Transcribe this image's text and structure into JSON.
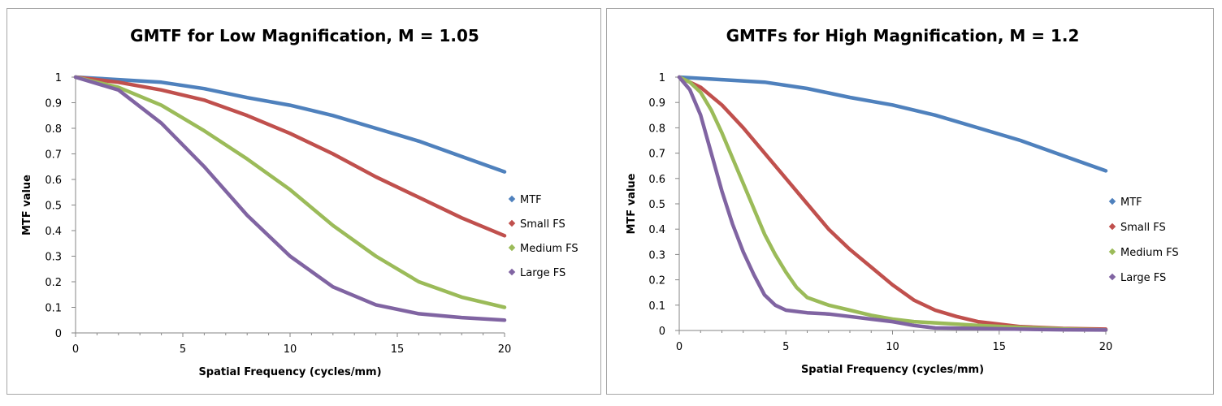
{
  "chart_data": [
    {
      "type": "line",
      "title": "GMTF for Low Magnification, M = 1.05",
      "xlabel": "Spatial Frequency (cycles/mm)",
      "ylabel": "MTF value",
      "xlim": [
        0,
        20
      ],
      "ylim": [
        0,
        1
      ],
      "x_ticks": [
        "0",
        "5",
        "10",
        "15",
        "20"
      ],
      "y_ticks": [
        "0",
        "0.1",
        "0.2",
        "0.3",
        "0.4",
        "0.5",
        "0.6",
        "0.7",
        "0.8",
        "0.9",
        "1"
      ],
      "grid": false,
      "legend_position": "right",
      "series": [
        {
          "name": "MTF",
          "color": "#4f81bd",
          "x": [
            0,
            2,
            4,
            6,
            8,
            10,
            12,
            14,
            16,
            18,
            20
          ],
          "values": [
            1,
            0.99,
            0.98,
            0.955,
            0.92,
            0.89,
            0.85,
            0.8,
            0.75,
            0.69,
            0.63
          ]
        },
        {
          "name": "Small FS",
          "color": "#c0504d",
          "x": [
            0,
            2,
            4,
            6,
            8,
            10,
            12,
            14,
            16,
            18,
            20
          ],
          "values": [
            1,
            0.98,
            0.95,
            0.91,
            0.85,
            0.78,
            0.7,
            0.61,
            0.53,
            0.45,
            0.38
          ]
        },
        {
          "name": "Medium FS",
          "color": "#9bbb59",
          "x": [
            0,
            2,
            4,
            6,
            8,
            10,
            12,
            14,
            16,
            18,
            20
          ],
          "values": [
            1,
            0.96,
            0.89,
            0.79,
            0.68,
            0.56,
            0.42,
            0.3,
            0.2,
            0.14,
            0.1
          ]
        },
        {
          "name": "Large FS",
          "color": "#8064a2",
          "x": [
            0,
            2,
            4,
            6,
            8,
            10,
            12,
            14,
            16,
            18,
            20
          ],
          "values": [
            1,
            0.95,
            0.82,
            0.65,
            0.46,
            0.3,
            0.18,
            0.11,
            0.075,
            0.06,
            0.05
          ]
        }
      ]
    },
    {
      "type": "line",
      "title": "GMTFs for High Magnification, M = 1.2",
      "xlabel": "Spatial Frequency (cycles/mm)",
      "ylabel": "MTF value",
      "xlim": [
        0,
        20
      ],
      "ylim": [
        0,
        1
      ],
      "x_ticks": [
        "0",
        "5",
        "10",
        "15",
        "20"
      ],
      "y_ticks": [
        "0",
        "0.1",
        "0.2",
        "0.3",
        "0.4",
        "0.5",
        "0.6",
        "0.7",
        "0.8",
        "0.9",
        "1"
      ],
      "grid": false,
      "legend_position": "right",
      "series": [
        {
          "name": "MTF",
          "color": "#4f81bd",
          "x": [
            0,
            2,
            4,
            6,
            8,
            10,
            12,
            14,
            16,
            18,
            20
          ],
          "values": [
            1,
            0.99,
            0.98,
            0.955,
            0.92,
            0.89,
            0.85,
            0.8,
            0.75,
            0.69,
            0.63
          ]
        },
        {
          "name": "Small FS",
          "color": "#c0504d",
          "x": [
            0,
            1,
            2,
            3,
            4,
            5,
            6,
            7,
            8,
            9,
            10,
            11,
            12,
            13,
            14,
            15,
            16,
            18,
            20
          ],
          "values": [
            1,
            0.96,
            0.89,
            0.8,
            0.7,
            0.6,
            0.5,
            0.4,
            0.32,
            0.25,
            0.18,
            0.12,
            0.08,
            0.055,
            0.035,
            0.025,
            0.015,
            0.008,
            0.005
          ]
        },
        {
          "name": "Medium FS",
          "color": "#9bbb59",
          "x": [
            0,
            0.5,
            1,
            1.5,
            2,
            2.5,
            3,
            3.5,
            4,
            4.5,
            5,
            5.5,
            6,
            7,
            8,
            9,
            10,
            11,
            12,
            14,
            16,
            18,
            20
          ],
          "values": [
            1,
            0.98,
            0.94,
            0.87,
            0.78,
            0.68,
            0.58,
            0.48,
            0.38,
            0.3,
            0.23,
            0.17,
            0.13,
            0.1,
            0.08,
            0.06,
            0.045,
            0.035,
            0.03,
            0.02,
            0.012,
            0.006,
            0.002
          ]
        },
        {
          "name": "Large FS",
          "color": "#8064a2",
          "x": [
            0,
            0.5,
            1,
            1.5,
            2,
            2.5,
            3,
            3.5,
            4,
            4.5,
            5,
            6,
            7,
            8,
            9,
            10,
            11,
            12,
            14,
            16,
            18,
            20
          ],
          "values": [
            1,
            0.95,
            0.85,
            0.7,
            0.55,
            0.42,
            0.31,
            0.22,
            0.14,
            0.1,
            0.08,
            0.07,
            0.065,
            0.055,
            0.045,
            0.035,
            0.02,
            0.01,
            0.008,
            0.005,
            0.003,
            0.002
          ]
        }
      ]
    }
  ]
}
